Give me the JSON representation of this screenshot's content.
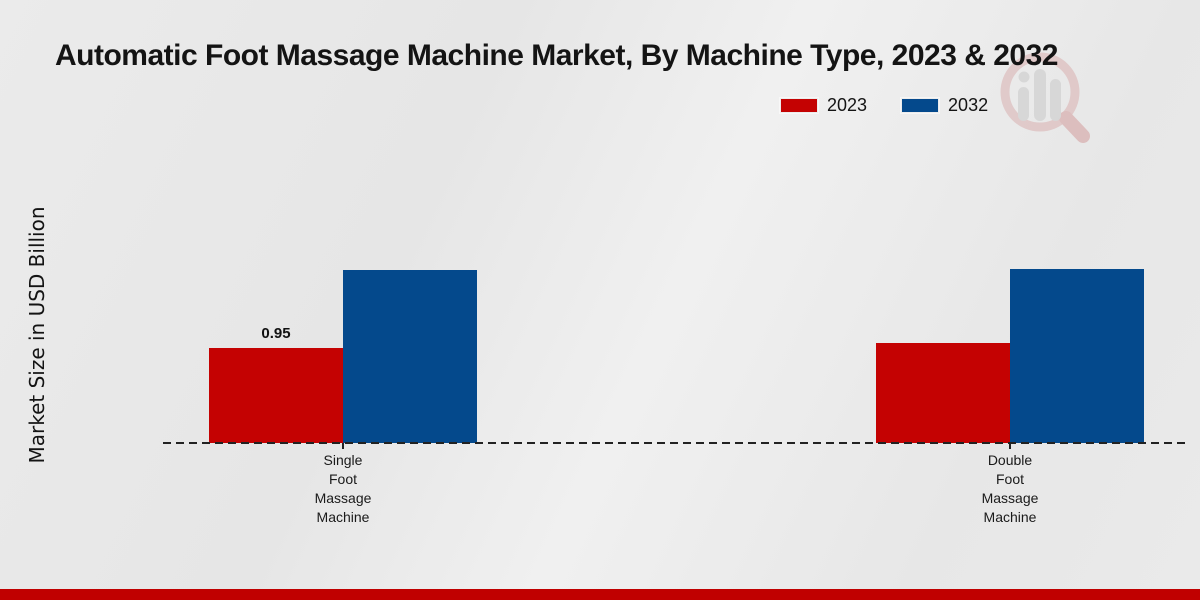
{
  "title": "Automatic Foot Massage Machine Market, By Machine Type, 2023 & 2032",
  "y_axis_label": "Market Size in USD Billion",
  "legend": [
    {
      "label": "2023",
      "color": "#c40202"
    },
    {
      "label": "2032",
      "color": "#04498c"
    }
  ],
  "colors": {
    "series_2023": "#c40202",
    "series_2032": "#04498c",
    "bottom_strip": "#c00000",
    "baseline": "#222222",
    "background": "#e9e9e9",
    "text": "#141414"
  },
  "watermark_icon": "magnifier-bar-chart-logo",
  "chart_data": {
    "type": "bar",
    "categories": [
      "Single Foot Massage Machine",
      "Double Foot Massage Machine"
    ],
    "series": [
      {
        "name": "2023",
        "color": "#c40202",
        "values": [
          0.95,
          1.0
        ],
        "value_labels": [
          "0.95",
          ""
        ]
      },
      {
        "name": "2032",
        "color": "#04498c",
        "values": [
          1.73,
          1.74
        ],
        "value_labels": [
          "",
          ""
        ]
      }
    ],
    "title": "Automatic Foot Massage Machine Market, By Machine Type, 2023 & 2032",
    "xlabel": "",
    "ylabel": "Market Size in USD Billion",
    "ylim": [
      0,
      2
    ],
    "grid": false,
    "y_axis_ticks_visible": false,
    "legend_position": "top-right",
    "baseline_style": "dashed"
  }
}
